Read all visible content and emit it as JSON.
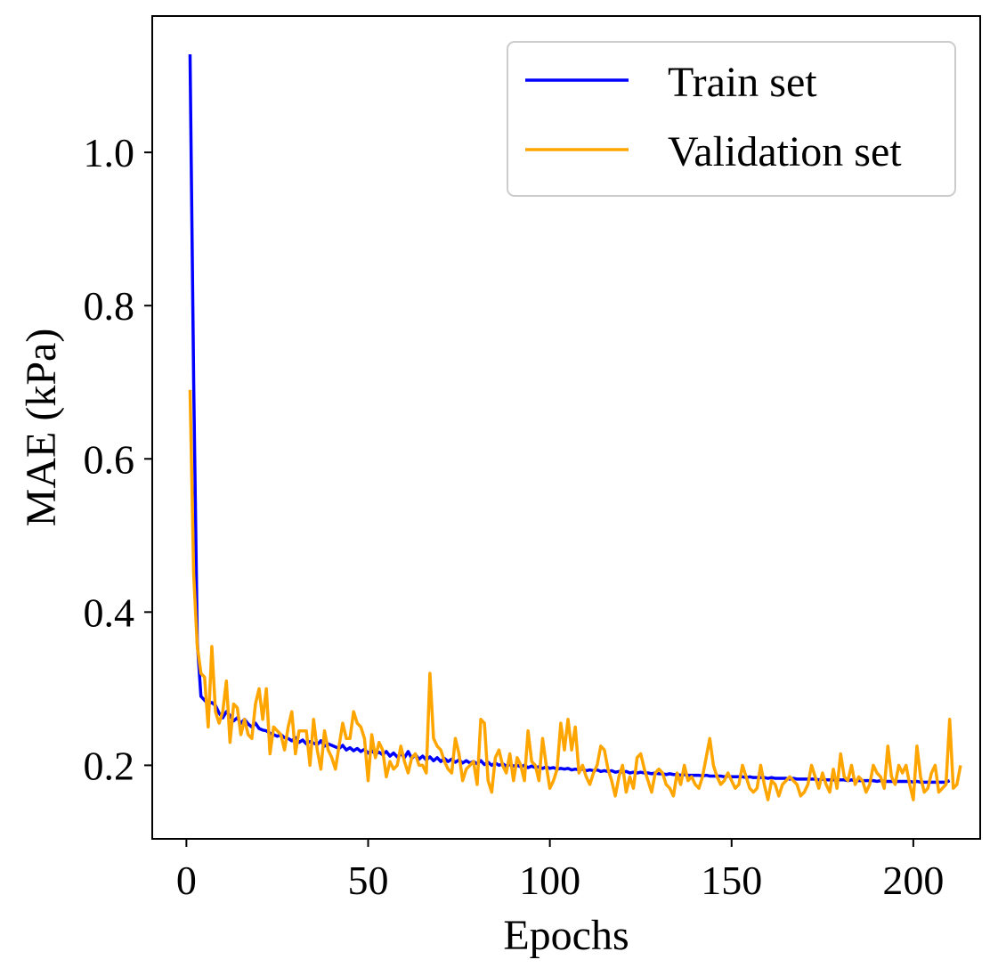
{
  "chart_data": {
    "type": "line",
    "title": "",
    "xlabel": "Epochs",
    "ylabel": "MAE (kPa)",
    "xlim": [
      -9.4,
      218.4
    ],
    "ylim": [
      0.104,
      1.178
    ],
    "xticks": [
      0,
      50,
      100,
      150,
      200
    ],
    "yticks": [
      0.2,
      0.4,
      0.6,
      0.8,
      1.0
    ],
    "xtick_labels": [
      "0",
      "50",
      "100",
      "150",
      "200"
    ],
    "ytick_labels": [
      "0.2",
      "0.4",
      "0.6",
      "0.8",
      "1.0"
    ],
    "grid": false,
    "legend_position": "top-right",
    "series": [
      {
        "name": "Train set",
        "color": "#0000ff",
        "x_start": 1,
        "values": [
          1.128,
          0.7,
          0.36,
          0.29,
          0.285,
          0.28,
          0.282,
          0.278,
          0.268,
          0.262,
          0.27,
          0.265,
          0.258,
          0.262,
          0.255,
          0.26,
          0.254,
          0.25,
          0.255,
          0.248,
          0.246,
          0.245,
          0.242,
          0.24,
          0.238,
          0.24,
          0.236,
          0.235,
          0.232,
          0.236,
          0.23,
          0.233,
          0.228,
          0.231,
          0.229,
          0.227,
          0.232,
          0.225,
          0.228,
          0.226,
          0.224,
          0.222,
          0.226,
          0.22,
          0.223,
          0.219,
          0.222,
          0.218,
          0.221,
          0.216,
          0.219,
          0.215,
          0.217,
          0.214,
          0.218,
          0.212,
          0.216,
          0.211,
          0.215,
          0.21,
          0.218,
          0.209,
          0.214,
          0.208,
          0.212,
          0.207,
          0.211,
          0.206,
          0.21,
          0.205,
          0.209,
          0.205,
          0.208,
          0.204,
          0.207,
          0.203,
          0.206,
          0.203,
          0.205,
          0.202,
          0.206,
          0.201,
          0.204,
          0.2,
          0.203,
          0.2,
          0.202,
          0.199,
          0.201,
          0.199,
          0.2,
          0.198,
          0.2,
          0.197,
          0.199,
          0.197,
          0.198,
          0.196,
          0.198,
          0.196,
          0.197,
          0.195,
          0.196,
          0.195,
          0.196,
          0.194,
          0.195,
          0.194,
          0.195,
          0.193,
          0.194,
          0.193,
          0.194,
          0.192,
          0.193,
          0.192,
          0.193,
          0.191,
          0.192,
          0.191,
          0.192,
          0.19,
          0.191,
          0.19,
          0.191,
          0.19,
          0.19,
          0.189,
          0.19,
          0.189,
          0.189,
          0.188,
          0.189,
          0.188,
          0.188,
          0.187,
          0.188,
          0.187,
          0.187,
          0.187,
          0.187,
          0.186,
          0.187,
          0.186,
          0.186,
          0.186,
          0.186,
          0.185,
          0.186,
          0.185,
          0.185,
          0.185,
          0.185,
          0.184,
          0.185,
          0.184,
          0.184,
          0.184,
          0.184,
          0.183,
          0.184,
          0.183,
          0.183,
          0.183,
          0.183,
          0.182,
          0.183,
          0.182,
          0.182,
          0.182,
          0.182,
          0.182,
          0.182,
          0.181,
          0.182,
          0.181,
          0.181,
          0.181,
          0.181,
          0.181,
          0.181,
          0.18,
          0.181,
          0.18,
          0.18,
          0.18,
          0.18,
          0.18,
          0.18,
          0.179,
          0.18,
          0.179,
          0.179,
          0.179,
          0.179,
          0.179,
          0.179,
          0.179,
          0.179,
          0.178,
          0.179,
          0.178,
          0.178,
          0.178,
          0.178,
          0.178,
          0.178,
          0.178,
          0.178,
          0.18
        ]
      },
      {
        "name": "Validation set",
        "color": "#ffa500",
        "x_start": 1,
        "values": [
          0.69,
          0.45,
          0.355,
          0.32,
          0.315,
          0.25,
          0.355,
          0.27,
          0.255,
          0.27,
          0.31,
          0.23,
          0.28,
          0.275,
          0.24,
          0.26,
          0.24,
          0.235,
          0.28,
          0.3,
          0.26,
          0.3,
          0.215,
          0.25,
          0.245,
          0.24,
          0.22,
          0.25,
          0.27,
          0.215,
          0.245,
          0.245,
          0.245,
          0.2,
          0.26,
          0.22,
          0.195,
          0.245,
          0.22,
          0.21,
          0.195,
          0.225,
          0.255,
          0.235,
          0.235,
          0.27,
          0.255,
          0.25,
          0.235,
          0.18,
          0.24,
          0.21,
          0.23,
          0.22,
          0.185,
          0.205,
          0.195,
          0.2,
          0.225,
          0.205,
          0.19,
          0.21,
          0.215,
          0.2,
          0.2,
          0.19,
          0.32,
          0.235,
          0.225,
          0.22,
          0.205,
          0.195,
          0.19,
          0.235,
          0.215,
          0.18,
          0.195,
          0.2,
          0.205,
          0.175,
          0.26,
          0.255,
          0.18,
          0.165,
          0.21,
          0.22,
          0.2,
          0.19,
          0.215,
          0.18,
          0.21,
          0.2,
          0.18,
          0.245,
          0.205,
          0.2,
          0.18,
          0.235,
          0.2,
          0.17,
          0.18,
          0.195,
          0.255,
          0.22,
          0.26,
          0.22,
          0.25,
          0.19,
          0.2,
          0.185,
          0.175,
          0.19,
          0.2,
          0.225,
          0.22,
          0.195,
          0.18,
          0.16,
          0.185,
          0.2,
          0.165,
          0.185,
          0.17,
          0.21,
          0.215,
          0.195,
          0.18,
          0.165,
          0.19,
          0.195,
          0.19,
          0.175,
          0.17,
          0.16,
          0.19,
          0.175,
          0.2,
          0.18,
          0.185,
          0.175,
          0.17,
          0.185,
          0.21,
          0.235,
          0.2,
          0.185,
          0.175,
          0.18,
          0.19,
          0.18,
          0.17,
          0.175,
          0.2,
          0.185,
          0.17,
          0.165,
          0.17,
          0.2,
          0.175,
          0.155,
          0.18,
          0.175,
          0.16,
          0.175,
          0.18,
          0.185,
          0.18,
          0.175,
          0.16,
          0.165,
          0.175,
          0.2,
          0.185,
          0.17,
          0.19,
          0.175,
          0.165,
          0.195,
          0.17,
          0.215,
          0.185,
          0.18,
          0.2,
          0.175,
          0.185,
          0.18,
          0.165,
          0.175,
          0.2,
          0.19,
          0.185,
          0.17,
          0.225,
          0.185,
          0.175,
          0.2,
          0.19,
          0.2,
          0.175,
          0.155,
          0.225,
          0.185,
          0.165,
          0.17,
          0.19,
          0.2,
          0.165,
          0.17,
          0.175,
          0.26,
          0.17,
          0.175,
          0.2
        ]
      }
    ]
  }
}
